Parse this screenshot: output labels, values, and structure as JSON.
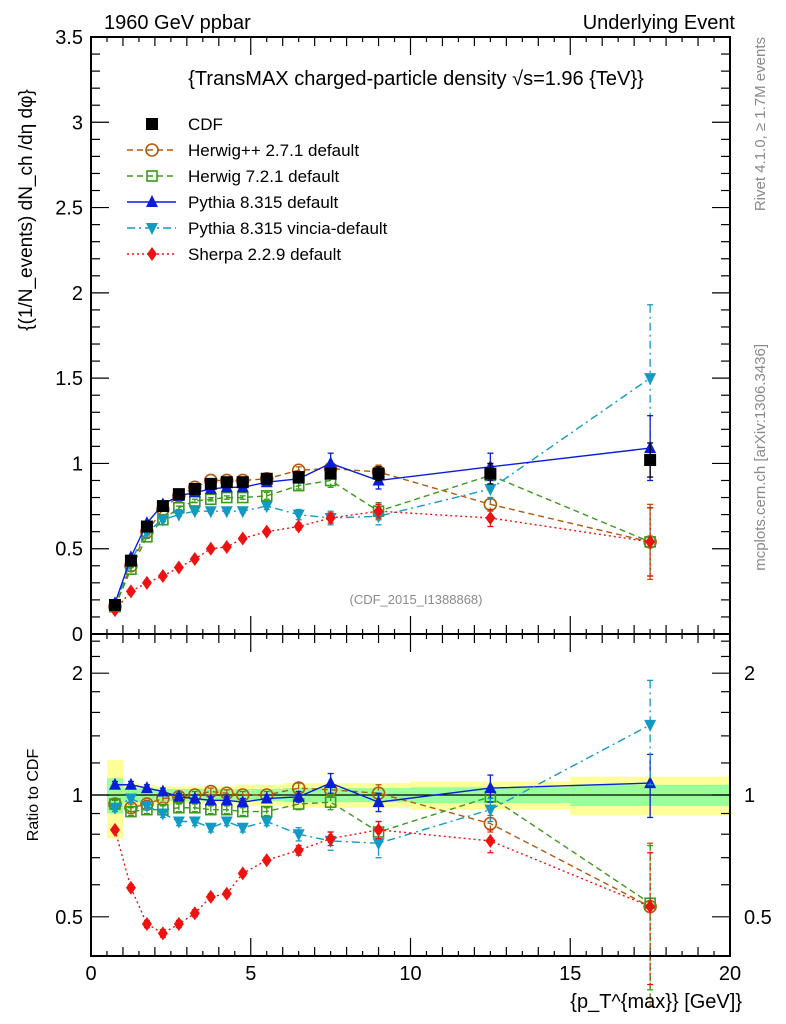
{
  "chart_data": [
    {
      "type": "scatter",
      "panel": "main",
      "header_left": "1960 GeV ppbar",
      "header_right": "Underlying Event",
      "title": "{TransMAX charged-particle density √s=1.96 {TeV}}",
      "ylabel": "{(1/N_events) dN_ch /dη dφ}",
      "xlabel": "",
      "ylim": [
        0,
        3.5
      ],
      "xlim": [
        0,
        20
      ],
      "yticks": [
        "0",
        "0.5",
        "1",
        "1.5",
        "2",
        "2.5",
        "3",
        "3.5"
      ],
      "yticks_values": [
        0,
        0.5,
        1,
        1.5,
        2,
        2.5,
        3,
        3.5
      ],
      "watermark": "(CDF_2015_I1388868)",
      "side_label_top": "Rivet 4.1.0, ≥ 1.7M events",
      "side_label_bottom": "mcplots.cern.ch [arXiv:1306.3436]",
      "legend_position": "top-left",
      "x": [
        0.75,
        1.25,
        1.75,
        2.25,
        2.75,
        3.25,
        3.75,
        4.25,
        4.75,
        5.5,
        6.5,
        7.5,
        9.0,
        12.5,
        17.5
      ],
      "series": [
        {
          "name": "CDF",
          "color": "#000000",
          "marker": "square-filled",
          "line": "none",
          "values": [
            0.17,
            0.43,
            0.63,
            0.75,
            0.82,
            0.85,
            0.88,
            0.89,
            0.89,
            0.91,
            0.92,
            0.94,
            0.94,
            0.94,
            1.02
          ],
          "errors": [
            0.01,
            0.01,
            0.01,
            0.01,
            0.01,
            0.01,
            0.01,
            0.01,
            0.01,
            0.01,
            0.02,
            0.03,
            0.04,
            0.06,
            0.1
          ]
        },
        {
          "name": "Herwig++ 2.7.1 default",
          "color": "#b05a0e",
          "marker": "circle-open",
          "line": "dashed",
          "values": [
            0.16,
            0.4,
            0.6,
            0.73,
            0.81,
            0.86,
            0.9,
            0.9,
            0.9,
            0.91,
            0.96,
            0.97,
            0.95,
            0.76,
            0.54
          ],
          "errors": [
            0.01,
            0.01,
            0.01,
            0.01,
            0.01,
            0.01,
            0.01,
            0.01,
            0.01,
            0.01,
            0.02,
            0.03,
            0.04,
            0.04,
            0.22
          ]
        },
        {
          "name": "Herwig 7.2.1 default",
          "color": "#3a9a1a",
          "marker": "square-open",
          "line": "dashed",
          "values": [
            0.16,
            0.38,
            0.57,
            0.67,
            0.74,
            0.78,
            0.79,
            0.8,
            0.8,
            0.81,
            0.87,
            0.9,
            0.72,
            0.93,
            0.54
          ],
          "errors": [
            0.01,
            0.01,
            0.01,
            0.01,
            0.01,
            0.01,
            0.01,
            0.01,
            0.01,
            0.02,
            0.02,
            0.04,
            0.05,
            0.06,
            0.2
          ]
        },
        {
          "name": "Pythia 8.315 default",
          "color": "#0a1ed8",
          "marker": "triangle-up",
          "line": "solid",
          "values": [
            0.18,
            0.45,
            0.65,
            0.76,
            0.81,
            0.83,
            0.85,
            0.86,
            0.86,
            0.89,
            0.91,
            1.0,
            0.9,
            0.98,
            1.09
          ],
          "errors": [
            0.01,
            0.01,
            0.01,
            0.01,
            0.01,
            0.01,
            0.01,
            0.01,
            0.01,
            0.02,
            0.02,
            0.06,
            0.05,
            0.08,
            0.19
          ]
        },
        {
          "name": "Pythia 8.315 vincia-default",
          "color": "#119ac4",
          "marker": "triangle-down",
          "line": "dashdot",
          "values": [
            0.16,
            0.43,
            0.6,
            0.67,
            0.7,
            0.72,
            0.72,
            0.72,
            0.72,
            0.75,
            0.7,
            0.68,
            0.69,
            0.85,
            1.5
          ],
          "errors": [
            0.01,
            0.01,
            0.01,
            0.01,
            0.01,
            0.01,
            0.01,
            0.01,
            0.01,
            0.02,
            0.03,
            0.04,
            0.05,
            0.06,
            0.43
          ]
        },
        {
          "name": "Sherpa 2.2.9 default",
          "color": "#ee1111",
          "marker": "diamond",
          "line": "dotted",
          "values": [
            0.14,
            0.25,
            0.3,
            0.34,
            0.39,
            0.44,
            0.5,
            0.51,
            0.56,
            0.6,
            0.63,
            0.68,
            0.72,
            0.68,
            0.54
          ],
          "errors": [
            0.01,
            0.01,
            0.01,
            0.01,
            0.01,
            0.01,
            0.01,
            0.01,
            0.01,
            0.01,
            0.02,
            0.03,
            0.04,
            0.05,
            0.2
          ]
        }
      ]
    },
    {
      "type": "scatter",
      "panel": "ratio",
      "ylabel": "Ratio to CDF",
      "xlabel": "{p_T^{max}} [GeV]}",
      "yscale": "log",
      "ylim": [
        0.4,
        2.5
      ],
      "xlim": [
        0,
        20
      ],
      "xticks": [
        "0",
        "5",
        "10",
        "15",
        "20"
      ],
      "xticks_values": [
        0,
        5,
        10,
        15,
        20
      ],
      "yticks": [
        "0.5",
        "1",
        "2"
      ],
      "yticks_values": [
        0.5,
        1,
        2
      ],
      "reference_line": 1,
      "bands": {
        "bin_edges": [
          0.5,
          1.0,
          1.5,
          2.0,
          2.5,
          3.0,
          3.5,
          4.0,
          4.5,
          5.0,
          6.0,
          7.0,
          8.0,
          10.0,
          15.0,
          20.0
        ],
        "stat_err": [
          0.1,
          0.04,
          0.04,
          0.035,
          0.035,
          0.035,
          0.035,
          0.035,
          0.035,
          0.035,
          0.04,
          0.04,
          0.04,
          0.045,
          0.06
        ],
        "total_err": [
          0.22,
          0.07,
          0.06,
          0.05,
          0.05,
          0.05,
          0.05,
          0.05,
          0.06,
          0.06,
          0.07,
          0.07,
          0.07,
          0.08,
          0.11
        ],
        "stat_color": "#99ff99",
        "total_color": "#ffff99"
      },
      "x": [
        0.75,
        1.25,
        1.75,
        2.25,
        2.75,
        3.25,
        3.75,
        4.25,
        4.75,
        5.5,
        6.5,
        7.5,
        9.0,
        12.5,
        17.5
      ],
      "series": [
        {
          "name": "Herwig++ 2.7.1 default",
          "values": [
            0.95,
            0.93,
            0.95,
            0.98,
            0.99,
            1.0,
            1.02,
            1.01,
            1.0,
            1.0,
            1.04,
            1.03,
            1.01,
            0.85,
            0.53
          ],
          "errors": [
            0.02,
            0.02,
            0.02,
            0.02,
            0.02,
            0.02,
            0.02,
            0.02,
            0.02,
            0.02,
            0.03,
            0.04,
            0.05,
            0.04,
            0.23
          ]
        },
        {
          "name": "Herwig 7.2.1 default",
          "values": [
            0.95,
            0.91,
            0.92,
            0.92,
            0.93,
            0.93,
            0.92,
            0.92,
            0.91,
            0.91,
            0.95,
            0.96,
            0.81,
            0.99,
            0.54
          ],
          "errors": [
            0.02,
            0.02,
            0.02,
            0.02,
            0.02,
            0.02,
            0.02,
            0.02,
            0.02,
            0.02,
            0.03,
            0.04,
            0.05,
            0.06,
            0.21
          ]
        },
        {
          "name": "Pythia 8.315 default",
          "values": [
            1.06,
            1.06,
            1.04,
            1.02,
            0.99,
            0.98,
            0.97,
            0.97,
            0.96,
            0.98,
            0.99,
            1.07,
            0.96,
            1.04,
            1.07
          ],
          "errors": [
            0.02,
            0.02,
            0.02,
            0.02,
            0.02,
            0.02,
            0.02,
            0.02,
            0.02,
            0.02,
            0.03,
            0.06,
            0.05,
            0.08,
            0.19
          ]
        },
        {
          "name": "Pythia 8.315 vincia-default",
          "values": [
            0.93,
            0.98,
            0.94,
            0.9,
            0.86,
            0.86,
            0.83,
            0.86,
            0.83,
            0.86,
            0.8,
            0.77,
            0.76,
            0.92,
            1.49
          ],
          "errors": [
            0.02,
            0.02,
            0.02,
            0.02,
            0.02,
            0.02,
            0.02,
            0.02,
            0.02,
            0.02,
            0.03,
            0.04,
            0.06,
            0.06,
            0.43
          ]
        },
        {
          "name": "Sherpa 2.2.9 default",
          "values": [
            0.82,
            0.59,
            0.48,
            0.455,
            0.48,
            0.51,
            0.56,
            0.57,
            0.64,
            0.69,
            0.73,
            0.78,
            0.82,
            0.77,
            0.53
          ],
          "errors": [
            0.01,
            0.01,
            0.01,
            0.01,
            0.01,
            0.01,
            0.01,
            0.01,
            0.01,
            0.01,
            0.02,
            0.03,
            0.04,
            0.05,
            0.19
          ]
        }
      ]
    }
  ]
}
